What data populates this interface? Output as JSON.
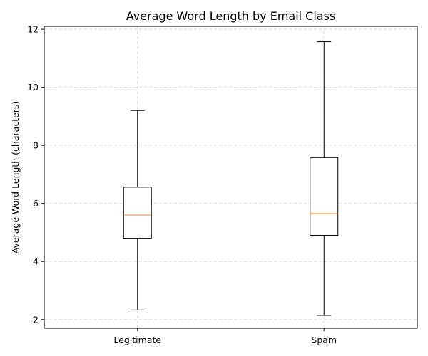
{
  "chart_data": {
    "type": "boxplot",
    "title": "Average Word Length by Email Class",
    "xlabel": "",
    "ylabel": "Average Word Length (characters)",
    "ylim": [
      1.7,
      12.1
    ],
    "yticks": [
      2,
      4,
      6,
      8,
      10,
      12
    ],
    "grid": true,
    "categories": [
      "Legitimate",
      "Spam"
    ],
    "boxes": [
      {
        "category": "Legitimate",
        "whisker_low": 2.33,
        "q1": 4.8,
        "median": 5.6,
        "q3": 6.56,
        "whisker_high": 9.2
      },
      {
        "category": "Spam",
        "whisker_low": 2.14,
        "q1": 4.9,
        "median": 5.65,
        "q3": 7.58,
        "whisker_high": 11.57
      }
    ],
    "colors": {
      "box": "#000000",
      "median": "#ff7f0e",
      "grid": "#d3d3d3"
    }
  }
}
